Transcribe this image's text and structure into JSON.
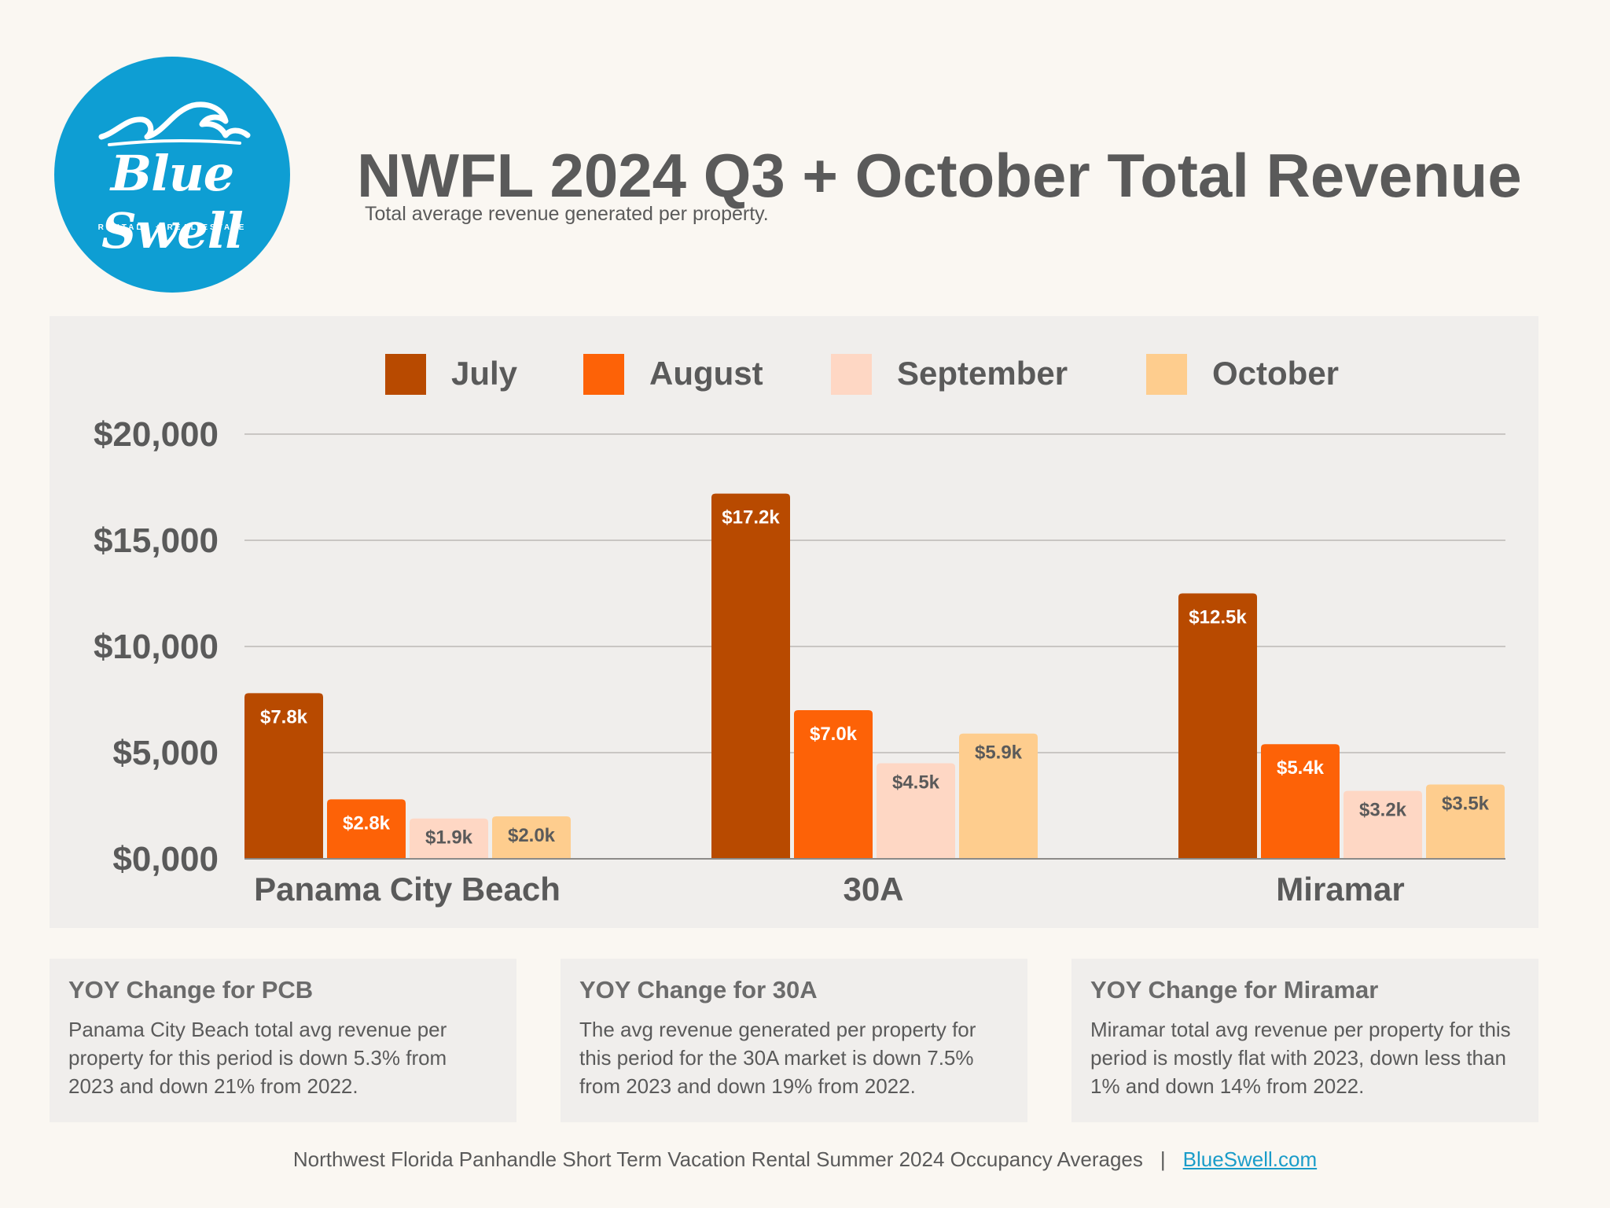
{
  "logo": {
    "wordmark": "Blue Swell",
    "tagline": "RENTALS + REAL ESTATE",
    "color": "#0e9ed3"
  },
  "header": {
    "title": "NWFL 2024 Q3 + October Total Revenue",
    "subtitle": "Total average revenue generated per property."
  },
  "chart_data": {
    "type": "bar",
    "categories": [
      "Panama City Beach",
      "30A",
      "Miramar"
    ],
    "series": [
      {
        "name": "July",
        "color": "#b84a00",
        "values": [
          7800,
          17200,
          12500
        ],
        "labels": [
          "$7.8k",
          "$17.2k",
          "$12.5k"
        ]
      },
      {
        "name": "August",
        "color": "#fd6207",
        "values": [
          2800,
          7000,
          5400
        ],
        "labels": [
          "$2.8k",
          "$7.0k",
          "$5.4k"
        ]
      },
      {
        "name": "September",
        "color": "#fed7c4",
        "values": [
          1900,
          4500,
          3200
        ],
        "labels": [
          "$1.9k",
          "$4.5k",
          "$3.2k"
        ]
      },
      {
        "name": "October",
        "color": "#fecd8e",
        "values": [
          2000,
          5900,
          3500
        ],
        "labels": [
          "$2.0k",
          "$5.9k",
          "$3.5k"
        ]
      }
    ],
    "y_ticks": [
      0,
      5000,
      10000,
      15000,
      20000
    ],
    "y_tick_labels": [
      "$0,000",
      "$5,000",
      "$10,000",
      "$15,000",
      "$20,000"
    ],
    "ylim": [
      0,
      20000
    ],
    "legend_position": "top",
    "grid": true
  },
  "cards": [
    {
      "title": "YOY Change for PCB",
      "text": "Panama City Beach total avg revenue per property for this period is down 5.3% from 2023 and down 21% from 2022."
    },
    {
      "title": "YOY Change for 30A",
      "text": "The avg revenue generated per property for this period for the 30A market is down 7.5% from 2023 and down 19% from 2022."
    },
    {
      "title": "YOY Change for Miramar",
      "text": "Miramar total avg revenue per property for this period is mostly flat with 2023, down less than 1% and down 14% from 2022."
    }
  ],
  "footer": {
    "text": "Northwest Florida Panhandle Short Term Vacation Rental Summer 2024 Occupancy Averages",
    "separator": "|",
    "link": "BlueSwell.com"
  }
}
